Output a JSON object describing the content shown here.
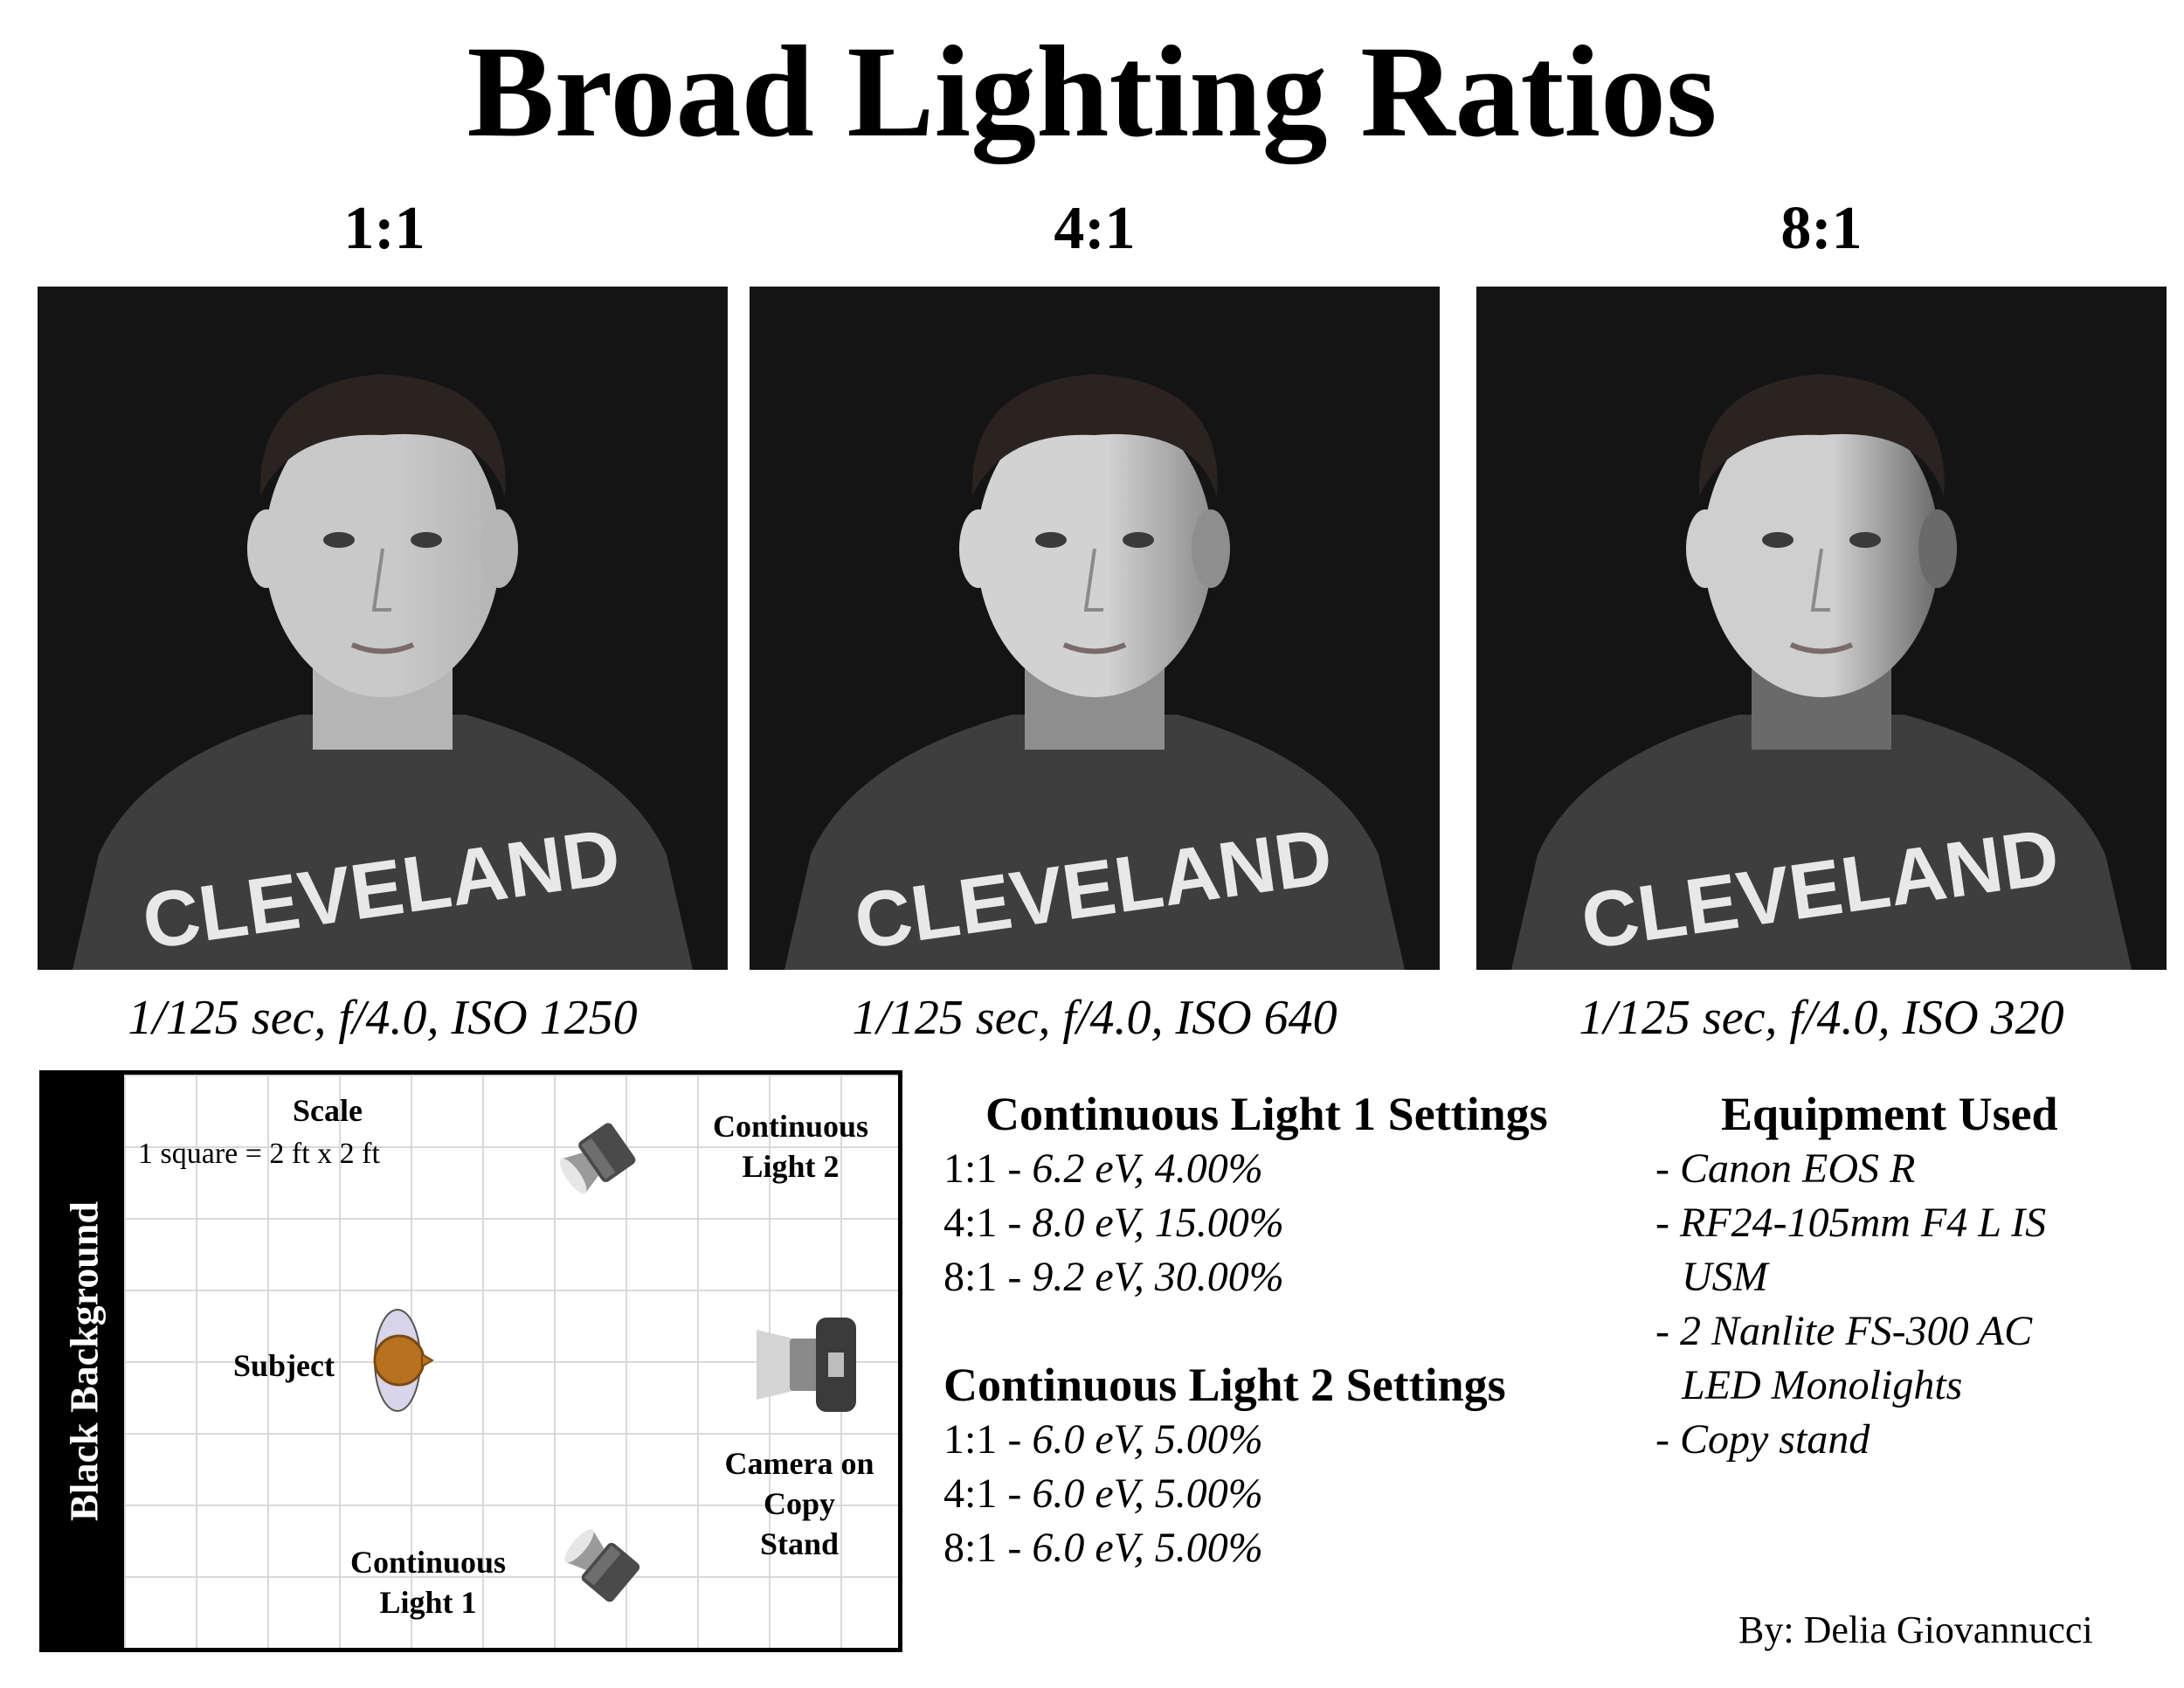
{
  "title": "Broad Lighting Ratios",
  "panels": [
    {
      "ratio": "1:1",
      "caption": "1/125 sec, f/4.0, ISO 1250"
    },
    {
      "ratio": "4:1",
      "caption": "1/125 sec, f/4.0, ISO 640"
    },
    {
      "ratio": "8:1",
      "caption": "1/125 sec, f/4.0, ISO 320"
    }
  ],
  "shirt_text": "CLEVELAND",
  "diagram": {
    "background_label": "Black Background",
    "scale_title": "Scale",
    "scale_text": "1 square = 2 ft x 2 ft",
    "light2_label": "Continuous Light 2",
    "subject_label": "Subject",
    "camera_label": "Camera on Copy Stand",
    "light1_label": "Continuous Light 1"
  },
  "light1": {
    "heading": "Continuous Light 1 Settings",
    "rows": [
      {
        "ratio": "1:1 -",
        "value": "6.2 eV, 4.00%"
      },
      {
        "ratio": "4:1 -",
        "value": "8.0 eV, 15.00%"
      },
      {
        "ratio": "8:1 -",
        "value": "9.2 eV, 30.00%"
      }
    ]
  },
  "light2": {
    "heading": "Continuous Light 2 Settings",
    "rows": [
      {
        "ratio": "1:1 -",
        "value": "6.0 eV, 5.00%"
      },
      {
        "ratio": "4:1 -",
        "value": "6.0 eV, 5.00%"
      },
      {
        "ratio": "8:1 -",
        "value": "6.0 eV, 5.00%"
      }
    ]
  },
  "equipment": {
    "heading": "Equipment Used",
    "items": [
      "- Canon EOS R",
      "- RF24-105mm F4 L IS",
      "  USM",
      "- 2 Nanlite FS-300 AC",
      "  LED Monolights",
      "- Copy stand"
    ]
  },
  "byline": "By: Delia Giovannucci",
  "colors": {
    "photo_bg": "#141414",
    "subject": "#b8711f",
    "subject_outline": "#7a4a12",
    "subject_ellipse": "#d8d4ea"
  }
}
